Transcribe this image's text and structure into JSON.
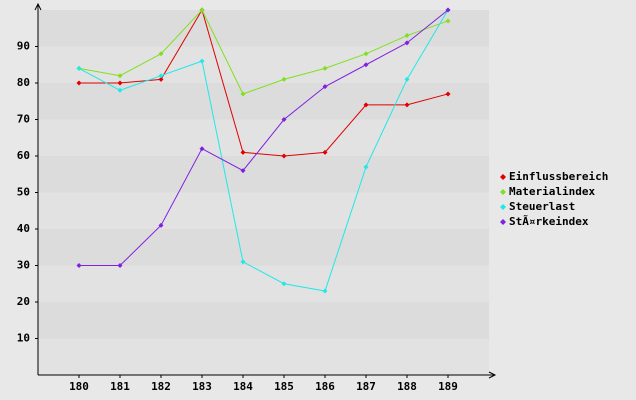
{
  "chart_data": {
    "type": "line",
    "categories": [
      "180",
      "181",
      "182",
      "183",
      "184",
      "185",
      "186",
      "187",
      "188",
      "189"
    ],
    "series": [
      {
        "name": "Einflussbereich",
        "color": "#e00000",
        "values": [
          80,
          80,
          81,
          100,
          61,
          60,
          61,
          74,
          74,
          77
        ]
      },
      {
        "name": "Materialindex",
        "color": "#80e020",
        "values": [
          84,
          82,
          88,
          100,
          77,
          81,
          84,
          88,
          93,
          97
        ]
      },
      {
        "name": "Steuerlast",
        "color": "#20e8e8",
        "values": [
          84,
          78,
          82,
          86,
          31,
          25,
          23,
          57,
          81,
          100
        ]
      },
      {
        "name": "StÃ¤rkeindex",
        "color": "#8020e0",
        "values": [
          30,
          30,
          41,
          62,
          56,
          70,
          79,
          85,
          91,
          100
        ]
      }
    ],
    "ylim": [
      0,
      100
    ],
    "yticks": [
      10,
      20,
      30,
      40,
      50,
      60,
      70,
      80,
      90
    ],
    "bands": true,
    "legend": "right"
  }
}
